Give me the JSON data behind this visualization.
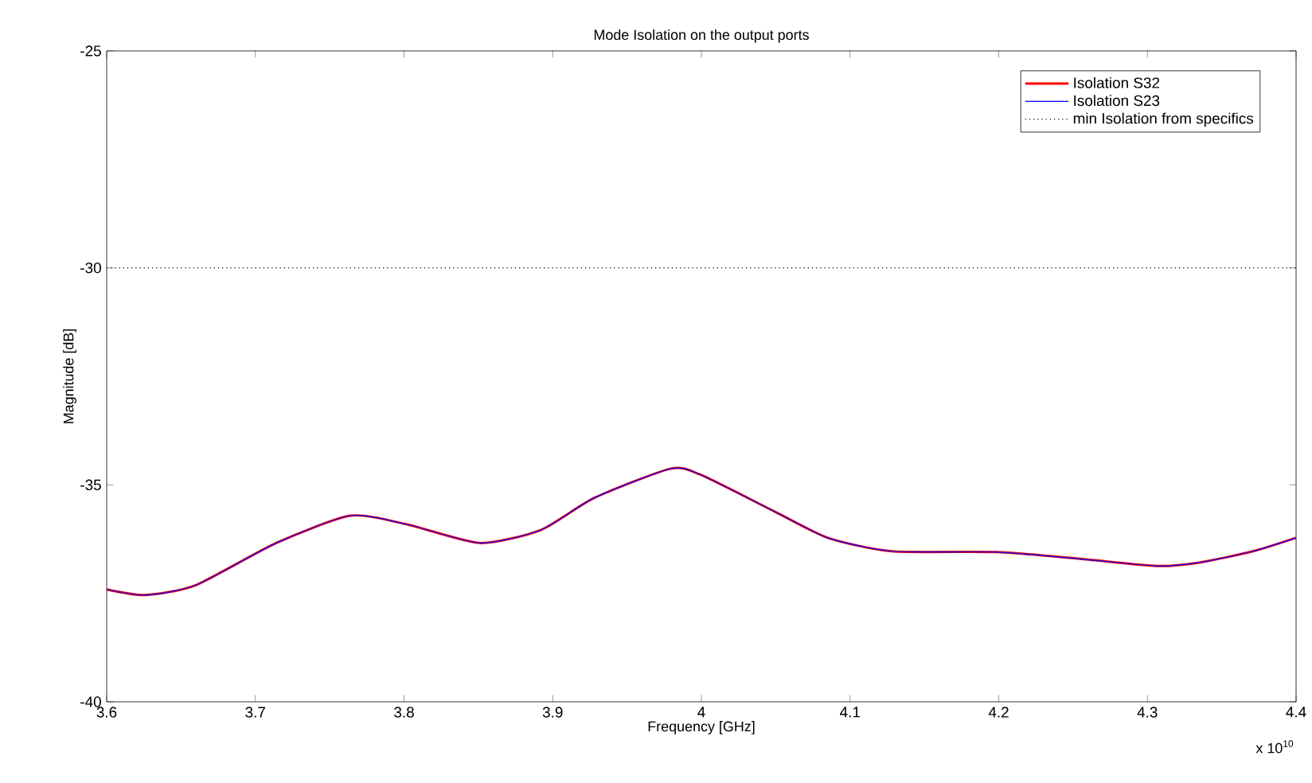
{
  "chart_data": {
    "type": "line",
    "title": "Mode Isolation on the output ports",
    "xlabel": "Frequency [GHz]",
    "ylabel": "Magnitude [dB]",
    "annotations": [
      "x 10$^{10}$"
    ],
    "x": [
      3.6,
      3.626,
      3.66,
      3.714,
      3.764,
      3.803,
      3.851,
      3.892,
      3.928,
      3.979,
      3.999,
      4.049,
      4.085,
      4.128,
      4.199,
      4.256,
      4.306,
      4.335,
      4.371,
      4.4
    ],
    "series": [
      {
        "name": "Isolation  S32",
        "color": "#ff0000",
        "values": [
          -37.41,
          -37.54,
          -37.31,
          -36.34,
          -35.71,
          -35.92,
          -36.34,
          -36.04,
          -35.3,
          -34.63,
          -34.76,
          -35.61,
          -36.22,
          -36.53,
          -36.55,
          -36.71,
          -36.87,
          -36.79,
          -36.53,
          -36.22
        ]
      },
      {
        "name": "Isolation S23",
        "color": "#0000ff",
        "values": [
          -37.41,
          -37.54,
          -37.31,
          -36.34,
          -35.71,
          -35.92,
          -36.34,
          -36.04,
          -35.3,
          -34.63,
          -34.76,
          -35.61,
          -36.22,
          -36.53,
          -36.55,
          -36.71,
          -36.87,
          -36.79,
          -36.53,
          -36.22
        ]
      }
    ],
    "ref_lines": [
      {
        "axis": "y",
        "value": -30,
        "label": "min Isolation from specifics",
        "color": "#000000",
        "line_style": "dotted"
      }
    ],
    "xlim": [
      3.6,
      4.4
    ],
    "ylim": [
      -40,
      -25
    ],
    "xticks": [
      3.6,
      3.7,
      3.8,
      3.9,
      4,
      4.1,
      4.2,
      4.3,
      4.4
    ],
    "yticks": [
      -40,
      -35,
      -30,
      -25
    ],
    "grid": false,
    "legend": "top right",
    "marker": "none",
    "line_style": "solid"
  }
}
